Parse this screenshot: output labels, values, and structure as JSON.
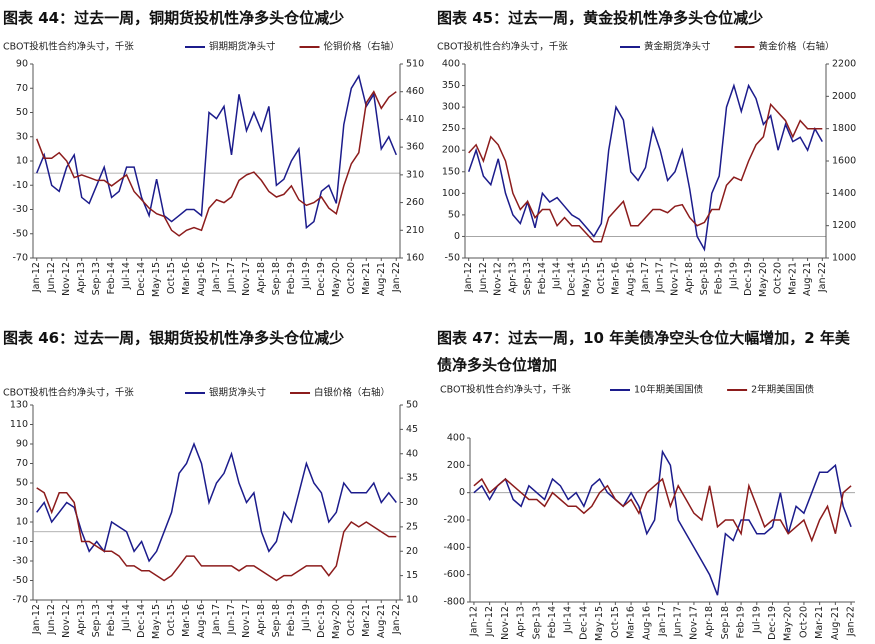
{
  "chart_data": [
    {
      "type": "line",
      "title": "图表 44：过去一周，铜期货投机性净多头仓位减少",
      "y_label": "CBOT投机性合约净头寸，千张",
      "categories": [
        "Jan-12",
        null,
        "Jun-12",
        null,
        "Nov-12",
        null,
        "Apr-13",
        null,
        "Sep-13",
        null,
        "Feb-14",
        null,
        "Jul-14",
        null,
        "Dec-14",
        null,
        "May-15",
        null,
        "Oct-15",
        null,
        "Mar-16",
        null,
        "Aug-16",
        null,
        "Jan-17",
        null,
        "Jun-17",
        null,
        "Nov-17",
        null,
        "Apr-18",
        null,
        "Sep-18",
        null,
        "Feb-19",
        null,
        "Jul-19",
        null,
        "Dec-19",
        null,
        "May-20",
        null,
        "Oct-20",
        null,
        "Mar-21",
        null,
        "Aug-21",
        null,
        "Jan-22"
      ],
      "series": [
        {
          "name": "铜期期货净头寸",
          "color": "#1c1c8c",
          "axis": "y",
          "values": [
            0,
            15,
            -10,
            -15,
            5,
            15,
            -20,
            -25,
            -10,
            5,
            -20,
            -15,
            5,
            5,
            -20,
            -35,
            -5,
            -35,
            -40,
            -35,
            -30,
            -30,
            -35,
            50,
            45,
            55,
            15,
            65,
            35,
            50,
            35,
            55,
            -10,
            -5,
            10,
            20,
            -45,
            -40,
            -15,
            -10,
            -25,
            40,
            70,
            80,
            55,
            65,
            20,
            30,
            15
          ]
        },
        {
          "name": "伦铜价格（右轴）",
          "color": "#8c1c1c",
          "axis": "y2",
          "values": [
            375,
            340,
            340,
            350,
            335,
            305,
            310,
            305,
            300,
            300,
            290,
            300,
            310,
            280,
            265,
            250,
            240,
            235,
            210,
            200,
            210,
            215,
            210,
            250,
            265,
            260,
            270,
            300,
            310,
            315,
            300,
            280,
            270,
            275,
            290,
            265,
            255,
            260,
            270,
            250,
            240,
            290,
            330,
            350,
            440,
            460,
            430,
            450,
            460
          ]
        }
      ],
      "ylim": [
        -70,
        90
      ],
      "yticks": [
        90,
        70,
        50,
        30,
        10,
        -10,
        -30,
        -50,
        -70
      ],
      "y2lim": [
        160,
        510
      ],
      "y2ticks": [
        510,
        460,
        410,
        360,
        310,
        260,
        210,
        160
      ]
    },
    {
      "type": "line",
      "title": "图表 45：过去一周，黄金投机性净多头仓位减少",
      "y_label": "CBOT投机性合约净头寸，千张",
      "categories": [
        "Jan-12",
        null,
        "Jun-12",
        null,
        "Nov-12",
        null,
        "Apr-13",
        null,
        "Sep-13",
        null,
        "Feb-14",
        null,
        "Jul-14",
        null,
        "Dec-14",
        null,
        "May-15",
        null,
        "Oct-15",
        null,
        "Mar-16",
        null,
        "Aug-16",
        null,
        "Jan-17",
        null,
        "Jun-17",
        null,
        "Nov-17",
        null,
        "Apr-18",
        null,
        "Sep-18",
        null,
        "Feb-19",
        null,
        "Jul-19",
        null,
        "Dec-19",
        null,
        "May-20",
        null,
        "Oct-20",
        null,
        "Mar-21",
        null,
        "Aug-21",
        null,
        "Jan-22"
      ],
      "series": [
        {
          "name": "黄金期货净头寸",
          "color": "#1c1c8c",
          "axis": "y",
          "values": [
            150,
            200,
            140,
            120,
            180,
            100,
            50,
            30,
            80,
            20,
            100,
            80,
            90,
            70,
            50,
            40,
            20,
            0,
            30,
            200,
            300,
            270,
            150,
            130,
            160,
            250,
            200,
            130,
            150,
            200,
            110,
            0,
            -30,
            100,
            140,
            300,
            350,
            290,
            350,
            320,
            260,
            280,
            200,
            260,
            220,
            230,
            200,
            250,
            220
          ]
        },
        {
          "name": "黄金价格（右轴）",
          "color": "#8c1c1c",
          "axis": "y2",
          "values": [
            1650,
            1700,
            1600,
            1750,
            1700,
            1600,
            1400,
            1300,
            1350,
            1250,
            1300,
            1300,
            1200,
            1250,
            1200,
            1200,
            1150,
            1100,
            1100,
            1250,
            1300,
            1350,
            1200,
            1200,
            1250,
            1300,
            1300,
            1280,
            1320,
            1330,
            1250,
            1200,
            1220,
            1300,
            1300,
            1450,
            1500,
            1480,
            1600,
            1700,
            1750,
            1950,
            1900,
            1850,
            1750,
            1850,
            1800,
            1800,
            1800
          ]
        }
      ],
      "ylim": [
        -50,
        400
      ],
      "yticks": [
        400,
        350,
        300,
        250,
        200,
        150,
        100,
        50,
        0,
        -50
      ],
      "y2lim": [
        1000,
        2200
      ],
      "y2ticks": [
        2200,
        2000,
        1800,
        1600,
        1400,
        1200,
        1000
      ]
    },
    {
      "type": "line",
      "title": "图表 46：过去一周，银期货投机性净多头仓位减少",
      "y_label": "CBOT投机性合约净头寸，千张",
      "categories": [
        "Jan-12",
        null,
        "Jun-12",
        null,
        "Nov-12",
        null,
        "Apr-13",
        null,
        "Sep-13",
        null,
        "Feb-14",
        null,
        "Jul-14",
        null,
        "Dec-14",
        null,
        "May-15",
        null,
        "Oct-15",
        null,
        "Mar-16",
        null,
        "Aug-16",
        null,
        "Jan-17",
        null,
        "Jun-17",
        null,
        "Nov-17",
        null,
        "Apr-18",
        null,
        "Sep-18",
        null,
        "Feb-19",
        null,
        "Jul-19",
        null,
        "Dec-19",
        null,
        "May-20",
        null,
        "Oct-20",
        null,
        "Mar-21",
        null,
        "Aug-21",
        null,
        "Jan-22"
      ],
      "series": [
        {
          "name": "银期货净头寸",
          "color": "#1c1c8c",
          "axis": "y",
          "values": [
            20,
            30,
            10,
            20,
            30,
            25,
            0,
            -20,
            -10,
            -20,
            10,
            5,
            0,
            -20,
            -10,
            -30,
            -20,
            0,
            20,
            60,
            70,
            90,
            70,
            30,
            50,
            60,
            80,
            50,
            30,
            40,
            0,
            -20,
            -10,
            20,
            10,
            40,
            70,
            50,
            40,
            10,
            20,
            50,
            40,
            40,
            40,
            50,
            30,
            40,
            30
          ]
        },
        {
          "name": "白银价格（右轴）",
          "color": "#8c1c1c",
          "axis": "y2",
          "values": [
            33,
            32,
            28,
            32,
            32,
            30,
            22,
            22,
            21,
            20,
            20,
            19,
            17,
            17,
            16,
            16,
            15,
            14,
            15,
            17,
            19,
            19,
            17,
            17,
            17,
            17,
            17,
            16,
            17,
            17,
            16,
            15,
            14,
            15,
            15,
            16,
            17,
            17,
            17,
            15,
            17,
            24,
            26,
            25,
            26,
            25,
            24,
            23,
            23
          ]
        }
      ],
      "ylim": [
        -70,
        130
      ],
      "yticks": [
        130,
        110,
        90,
        70,
        50,
        30,
        10,
        -10,
        -30,
        -50,
        -70
      ],
      "y2lim": [
        10,
        50
      ],
      "y2ticks": [
        50,
        45,
        40,
        35,
        30,
        25,
        20,
        15,
        10
      ]
    },
    {
      "type": "line",
      "title": "图表 47：过去一周，10 年美债净空头仓位大幅增加，2 年美债净多头仓位增加",
      "y_label": "CBOT投机性合约净头寸，千张",
      "categories": [
        "Jan-12",
        null,
        "Jun-12",
        null,
        "Nov-12",
        null,
        "Apr-13",
        null,
        "Sep-13",
        null,
        "Feb-14",
        null,
        "Jul-14",
        null,
        "Dec-14",
        null,
        "May-15",
        null,
        "Oct-15",
        null,
        "Mar-16",
        null,
        "Aug-16",
        null,
        "Jan-17",
        null,
        "Jun-17",
        null,
        "Nov-17",
        null,
        "Apr-18",
        null,
        "Sep-18",
        null,
        "Feb-19",
        null,
        "Jul-19",
        null,
        "Dec-19",
        null,
        "May-20",
        null,
        "Oct-20",
        null,
        "Mar-21",
        null,
        "Aug-21",
        null,
        "Jan-22"
      ],
      "series": [
        {
          "name": "10年期美国国债",
          "color": "#1c1c8c",
          "axis": "y",
          "values": [
            0,
            50,
            -50,
            50,
            100,
            -50,
            -100,
            50,
            0,
            -50,
            100,
            50,
            -50,
            0,
            -100,
            50,
            100,
            0,
            -50,
            -100,
            0,
            -100,
            -300,
            -200,
            300,
            200,
            -200,
            -300,
            -400,
            -500,
            -600,
            -750,
            -300,
            -350,
            -200,
            -200,
            -300,
            -300,
            -250,
            0,
            -300,
            -100,
            -150,
            0,
            150,
            150,
            200,
            -100,
            -250
          ]
        },
        {
          "name": "2年期美国国债",
          "color": "#8c1c1c",
          "axis": "y",
          "values": [
            50,
            100,
            0,
            50,
            100,
            50,
            0,
            -50,
            -50,
            -100,
            0,
            -50,
            -100,
            -100,
            -150,
            -100,
            0,
            50,
            -50,
            -100,
            -50,
            -150,
            0,
            50,
            100,
            -100,
            50,
            -50,
            -150,
            -200,
            50,
            -250,
            -200,
            -200,
            -300,
            50,
            -100,
            -250,
            -200,
            -200,
            -300,
            -250,
            -200,
            -350,
            -200,
            -100,
            -300,
            0,
            50
          ]
        }
      ],
      "ylim": [
        -800,
        400
      ],
      "yticks": [
        400,
        200,
        0,
        -200,
        -400,
        -600,
        -800
      ]
    }
  ]
}
